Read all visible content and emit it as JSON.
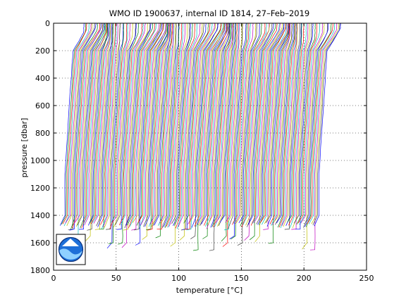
{
  "chart_data": {
    "type": "line",
    "title": "WMO ID 1900637, internal ID 1814, 27–Feb–2019",
    "xlabel": "temperature [°C]",
    "ylabel": "pressure [dbar]",
    "xlim": [
      0,
      250
    ],
    "ylim": [
      0,
      1800
    ],
    "y_reversed": true,
    "grid": true,
    "xticks": [
      0,
      50,
      100,
      150,
      200,
      250
    ],
    "yticks": [
      0,
      200,
      400,
      600,
      800,
      1000,
      1200,
      1400,
      1600,
      1800
    ],
    "xtick_labels": [
      "0",
      "50",
      "100",
      "150",
      "200",
      "250"
    ],
    "ytick_labels": [
      "0",
      "200",
      "400",
      "600",
      "800",
      "1000",
      "1200",
      "1400",
      "1600",
      "1800"
    ],
    "profile_count": 190,
    "profile_offset_range": [
      5,
      208
    ],
    "deep_temperature_approx": 3,
    "surface_temperature_range": [
      14,
      24
    ],
    "max_pressure_range": [
      1450,
      1660
    ],
    "logo": "noaa-logo",
    "colors": [
      "#0000ff",
      "#008000",
      "#ff0000",
      "#00bfbf",
      "#bf00bf",
      "#bfbf00",
      "#404040"
    ]
  }
}
